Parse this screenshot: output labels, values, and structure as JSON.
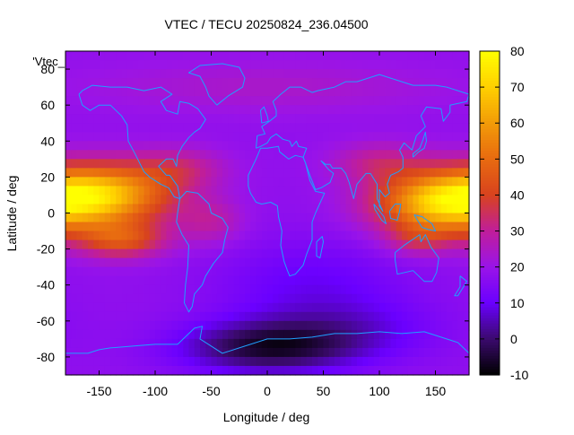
{
  "chart_data": {
    "type": "heatmap",
    "title": "VTEC / TECU 20250824_236.04500",
    "xlabel": "Longitude / deg",
    "ylabel": "Latitude / deg",
    "legend_key": "'Vtec_",
    "xlim": [
      -180,
      180
    ],
    "ylim": [
      -90,
      90
    ],
    "xticks": [
      -150,
      -100,
      -50,
      0,
      50,
      100,
      150
    ],
    "yticks": [
      -80,
      -60,
      -40,
      -20,
      0,
      20,
      40,
      60,
      80
    ],
    "colorbar": {
      "range": [
        -10,
        80
      ],
      "ticks": [
        -10,
        0,
        10,
        20,
        30,
        40,
        50,
        60,
        70,
        80
      ],
      "colormap": [
        {
          "value": -10,
          "color": "#000000"
        },
        {
          "value": 0,
          "color": "#3b0a6e"
        },
        {
          "value": 10,
          "color": "#6a00ff"
        },
        {
          "value": 20,
          "color": "#9a14e8"
        },
        {
          "value": 30,
          "color": "#c01e9a"
        },
        {
          "value": 40,
          "color": "#d8431e"
        },
        {
          "value": 50,
          "color": "#e86a10"
        },
        {
          "value": 60,
          "color": "#f29b08"
        },
        {
          "value": 70,
          "color": "#ffd000"
        },
        {
          "value": 80,
          "color": "#ffff00"
        }
      ]
    },
    "field": {
      "background": 18,
      "grid_step_deg": 5,
      "blobs": [
        {
          "lon": -150,
          "lat": 10,
          "slon": 45,
          "slat": 12,
          "amp": 48
        },
        {
          "lon": -130,
          "lat": -15,
          "slon": 28,
          "slat": 7,
          "amp": 24
        },
        {
          "lon": -80,
          "lat": 25,
          "slon": 30,
          "slat": 8,
          "amp": 12
        },
        {
          "lon": -50,
          "lat": -5,
          "slon": 20,
          "slat": 9,
          "amp": 10
        },
        {
          "lon": 150,
          "lat": 5,
          "slon": 40,
          "slat": 12,
          "amp": 40
        },
        {
          "lon": 135,
          "lat": -15,
          "slon": 20,
          "slat": 6,
          "amp": 12
        },
        {
          "lon": 100,
          "lat": 28,
          "slon": 30,
          "slat": 8,
          "amp": 12
        },
        {
          "lon": 40,
          "lat": -40,
          "slon": 60,
          "slat": 18,
          "amp": -8
        },
        {
          "lon": 0,
          "lat": -75,
          "slon": 55,
          "slat": 10,
          "amp": -22
        },
        {
          "lon": 70,
          "lat": -65,
          "slon": 60,
          "slat": 12,
          "amp": -8
        },
        {
          "lon": 0,
          "lat": 70,
          "slon": 120,
          "slat": 10,
          "amp": 6
        }
      ]
    },
    "coastlines": [
      {
        "name": "north-america",
        "pts": [
          [
            -168,
            66
          ],
          [
            -165,
            60
          ],
          [
            -158,
            57
          ],
          [
            -150,
            60
          ],
          [
            -140,
            60
          ],
          [
            -135,
            57
          ],
          [
            -130,
            54
          ],
          [
            -125,
            49
          ],
          [
            -124,
            40
          ],
          [
            -118,
            33
          ],
          [
            -110,
            23
          ],
          [
            -105,
            20
          ],
          [
            -95,
            16
          ],
          [
            -88,
            14
          ],
          [
            -83,
            9
          ],
          [
            -78,
            8
          ],
          [
            -80,
            15
          ],
          [
            -87,
            21
          ],
          [
            -90,
            21
          ],
          [
            -97,
            26
          ],
          [
            -90,
            30
          ],
          [
            -84,
            30
          ],
          [
            -81,
            26
          ],
          [
            -80,
            32
          ],
          [
            -76,
            37
          ],
          [
            -70,
            42
          ],
          [
            -65,
            45
          ],
          [
            -60,
            47
          ],
          [
            -55,
            52
          ],
          [
            -62,
            58
          ],
          [
            -70,
            61
          ],
          [
            -78,
            62
          ],
          [
            -80,
            55
          ],
          [
            -90,
            57
          ],
          [
            -95,
            62
          ],
          [
            -85,
            66
          ],
          [
            -95,
            70
          ],
          [
            -110,
            68
          ],
          [
            -125,
            70
          ],
          [
            -140,
            70
          ],
          [
            -156,
            71
          ],
          [
            -165,
            68
          ],
          [
            -168,
            66
          ]
        ]
      },
      {
        "name": "greenland",
        "pts": [
          [
            -45,
            60
          ],
          [
            -52,
            65
          ],
          [
            -55,
            70
          ],
          [
            -60,
            76
          ],
          [
            -70,
            78
          ],
          [
            -60,
            82
          ],
          [
            -40,
            83
          ],
          [
            -25,
            81
          ],
          [
            -20,
            75
          ],
          [
            -22,
            70
          ],
          [
            -35,
            65
          ],
          [
            -45,
            60
          ]
        ]
      },
      {
        "name": "south-america",
        "pts": [
          [
            -78,
            8
          ],
          [
            -72,
            12
          ],
          [
            -62,
            11
          ],
          [
            -52,
            5
          ],
          [
            -50,
            0
          ],
          [
            -40,
            -3
          ],
          [
            -35,
            -8
          ],
          [
            -38,
            -15
          ],
          [
            -40,
            -22
          ],
          [
            -48,
            -28
          ],
          [
            -55,
            -35
          ],
          [
            -58,
            -40
          ],
          [
            -65,
            -45
          ],
          [
            -67,
            -52
          ],
          [
            -70,
            -55
          ],
          [
            -74,
            -50
          ],
          [
            -73,
            -40
          ],
          [
            -71,
            -30
          ],
          [
            -70,
            -18
          ],
          [
            -76,
            -12
          ],
          [
            -81,
            -5
          ],
          [
            -80,
            0
          ],
          [
            -78,
            8
          ]
        ]
      },
      {
        "name": "eurasia",
        "pts": [
          [
            -10,
            36
          ],
          [
            -9,
            43
          ],
          [
            -2,
            44
          ],
          [
            -5,
            48
          ],
          [
            2,
            51
          ],
          [
            8,
            54
          ],
          [
            8,
            57
          ],
          [
            5,
            62
          ],
          [
            12,
            66
          ],
          [
            20,
            70
          ],
          [
            30,
            70
          ],
          [
            40,
            67
          ],
          [
            45,
            68
          ],
          [
            60,
            70
          ],
          [
            70,
            73
          ],
          [
            80,
            73
          ],
          [
            100,
            77
          ],
          [
            115,
            74
          ],
          [
            130,
            71
          ],
          [
            150,
            71
          ],
          [
            160,
            70
          ],
          [
            170,
            68
          ],
          [
            180,
            66
          ],
          [
            178,
            62
          ],
          [
            163,
            60
          ],
          [
            163,
            56
          ],
          [
            157,
            51
          ],
          [
            155,
            58
          ],
          [
            142,
            59
          ],
          [
            137,
            54
          ],
          [
            141,
            48
          ],
          [
            133,
            43
          ],
          [
            129,
            35
          ],
          [
            122,
            39
          ],
          [
            118,
            35
          ],
          [
            121,
            31
          ],
          [
            121,
            25
          ],
          [
            117,
            23
          ],
          [
            110,
            21
          ],
          [
            107,
            16
          ],
          [
            109,
            11
          ],
          [
            105,
            9
          ],
          [
            100,
            13
          ],
          [
            100,
            4
          ],
          [
            103,
            1
          ],
          [
            98,
            8
          ],
          [
            98,
            16
          ],
          [
            92,
            22
          ],
          [
            88,
            22
          ],
          [
            80,
            16
          ],
          [
            77,
            8
          ],
          [
            73,
            17
          ],
          [
            70,
            22
          ],
          [
            66,
            25
          ],
          [
            58,
            25
          ],
          [
            56,
            27
          ],
          [
            52,
            27
          ],
          [
            48,
            29
          ],
          [
            55,
            24
          ],
          [
            59,
            22
          ],
          [
            56,
            17
          ],
          [
            48,
            14
          ],
          [
            43,
            13
          ],
          [
            38,
            21
          ],
          [
            34,
            28
          ],
          [
            32,
            31
          ],
          [
            35,
            36
          ],
          [
            28,
            37
          ],
          [
            26,
            40
          ],
          [
            22,
            37
          ],
          [
            20,
            40
          ],
          [
            14,
            41
          ],
          [
            8,
            44
          ],
          [
            3,
            42
          ],
          [
            0,
            39
          ],
          [
            -6,
            37
          ],
          [
            -10,
            36
          ]
        ]
      },
      {
        "name": "africa",
        "pts": [
          [
            -6,
            36
          ],
          [
            -10,
            30
          ],
          [
            -17,
            21
          ],
          [
            -17,
            15
          ],
          [
            -15,
            11
          ],
          [
            -10,
            6
          ],
          [
            -5,
            5
          ],
          [
            3,
            6
          ],
          [
            9,
            4
          ],
          [
            10,
            -2
          ],
          [
            13,
            -10
          ],
          [
            12,
            -18
          ],
          [
            15,
            -27
          ],
          [
            18,
            -32
          ],
          [
            20,
            -35
          ],
          [
            25,
            -34
          ],
          [
            32,
            -29
          ],
          [
            35,
            -23
          ],
          [
            40,
            -15
          ],
          [
            40,
            -5
          ],
          [
            43,
            0
          ],
          [
            51,
            11
          ],
          [
            43,
            12
          ],
          [
            38,
            18
          ],
          [
            34,
            28
          ],
          [
            32,
            31
          ],
          [
            25,
            32
          ],
          [
            19,
            30
          ],
          [
            11,
            34
          ],
          [
            10,
            37
          ],
          [
            0,
            36
          ],
          [
            -6,
            36
          ]
        ]
      },
      {
        "name": "madagascar",
        "pts": [
          [
            44,
            -16
          ],
          [
            49,
            -13
          ],
          [
            50,
            -16
          ],
          [
            47,
            -25
          ],
          [
            44,
            -24
          ],
          [
            44,
            -16
          ]
        ]
      },
      {
        "name": "great-britain",
        "pts": [
          [
            -5,
            50
          ],
          [
            1,
            51
          ],
          [
            0,
            54
          ],
          [
            -3,
            59
          ],
          [
            -6,
            57
          ],
          [
            -5,
            50
          ]
        ]
      },
      {
        "name": "japan",
        "pts": [
          [
            130,
            31
          ],
          [
            135,
            34
          ],
          [
            140,
            36
          ],
          [
            142,
            40
          ],
          [
            141,
            45
          ],
          [
            139,
            41
          ],
          [
            136,
            36
          ],
          [
            130,
            33
          ],
          [
            130,
            31
          ]
        ]
      },
      {
        "name": "borneo",
        "pts": [
          [
            109,
            1
          ],
          [
            114,
            5
          ],
          [
            119,
            5
          ],
          [
            118,
            1
          ],
          [
            116,
            -4
          ],
          [
            110,
            -3
          ],
          [
            109,
            1
          ]
        ]
      },
      {
        "name": "sumatra",
        "pts": [
          [
            95,
            5
          ],
          [
            99,
            2
          ],
          [
            104,
            -2
          ],
          [
            106,
            -6
          ],
          [
            102,
            -4
          ],
          [
            96,
            2
          ],
          [
            95,
            5
          ]
        ]
      },
      {
        "name": "new-guinea",
        "pts": [
          [
            131,
            -1
          ],
          [
            138,
            -2
          ],
          [
            147,
            -6
          ],
          [
            150,
            -10
          ],
          [
            143,
            -9
          ],
          [
            138,
            -8
          ],
          [
            134,
            -4
          ],
          [
            131,
            -1
          ]
        ]
      },
      {
        "name": "australia",
        "pts": [
          [
            114,
            -22
          ],
          [
            122,
            -18
          ],
          [
            129,
            -15
          ],
          [
            136,
            -12
          ],
          [
            137,
            -16
          ],
          [
            141,
            -12
          ],
          [
            146,
            -19
          ],
          [
            153,
            -25
          ],
          [
            151,
            -33
          ],
          [
            147,
            -38
          ],
          [
            140,
            -38
          ],
          [
            135,
            -35
          ],
          [
            130,
            -32
          ],
          [
            116,
            -34
          ],
          [
            114,
            -26
          ],
          [
            114,
            -22
          ]
        ]
      },
      {
        "name": "new-zealand",
        "pts": [
          [
            172,
            -35
          ],
          [
            178,
            -38
          ],
          [
            175,
            -41
          ],
          [
            170,
            -46
          ],
          [
            167,
            -46
          ],
          [
            172,
            -41
          ],
          [
            172,
            -35
          ]
        ]
      },
      {
        "name": "antarctica",
        "pts": [
          [
            -180,
            -85
          ],
          [
            -180,
            -78
          ],
          [
            -160,
            -78
          ],
          [
            -150,
            -76
          ],
          [
            -140,
            -75
          ],
          [
            -120,
            -74
          ],
          [
            -100,
            -73
          ],
          [
            -80,
            -73
          ],
          [
            -65,
            -64
          ],
          [
            -58,
            -63
          ],
          [
            -60,
            -70
          ],
          [
            -40,
            -78
          ],
          [
            -20,
            -74
          ],
          [
            0,
            -70
          ],
          [
            20,
            -70
          ],
          [
            40,
            -69
          ],
          [
            60,
            -67
          ],
          [
            80,
            -67
          ],
          [
            100,
            -66
          ],
          [
            120,
            -67
          ],
          [
            140,
            -66
          ],
          [
            160,
            -70
          ],
          [
            170,
            -72
          ],
          [
            180,
            -78
          ],
          [
            180,
            -85
          ]
        ]
      }
    ]
  }
}
